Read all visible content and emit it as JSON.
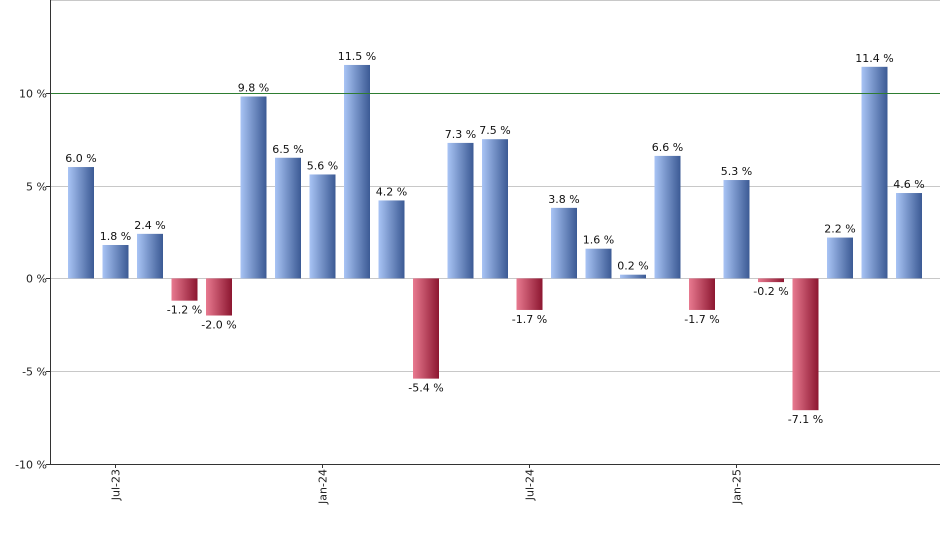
{
  "chart_data": {
    "type": "bar",
    "title": "",
    "xlabel": "",
    "ylabel": "",
    "ylim": [
      -10,
      15
    ],
    "y_ticks": [
      -10,
      -5,
      0,
      5,
      10
    ],
    "y_tick_labels": [
      "-10 %",
      "-5 %",
      "0 %",
      "5 %",
      "10 %"
    ],
    "grid": true,
    "reference_line": {
      "value": 10,
      "color": "#2e7d32"
    },
    "x_tick_labels": [
      {
        "label": "Jul-23",
        "at_index": 1
      },
      {
        "label": "Jan-24",
        "at_index": 7
      },
      {
        "label": "Jul-24",
        "at_index": 13
      },
      {
        "label": "Jan-25",
        "at_index": 19
      }
    ],
    "values": [
      6.0,
      1.8,
      2.4,
      -1.2,
      -2.0,
      9.8,
      6.5,
      5.6,
      11.5,
      4.2,
      -5.4,
      7.3,
      7.5,
      -1.7,
      3.8,
      1.6,
      0.2,
      6.6,
      -1.7,
      5.3,
      -0.2,
      -7.1,
      2.2,
      11.4,
      4.6
    ],
    "labels": [
      "6.0 %",
      "1.8 %",
      "2.4 %",
      "-1.2 %",
      "-2.0 %",
      "9.8 %",
      "6.5 %",
      "5.6 %",
      "11.5 %",
      "4.2 %",
      "-5.4 %",
      "7.3 %",
      "7.5 %",
      "-1.7 %",
      "3.8 %",
      "1.6 %",
      "0.2 %",
      "6.6 %",
      "-1.7 %",
      "5.3 %",
      "-0.2 %",
      "-7.1 %",
      "2.2 %",
      "11.4 %",
      "4.6 %"
    ],
    "colors": {
      "positive_light": "#a9c4f5",
      "positive_dark": "#3b5a94",
      "negative_light": "#e87a90",
      "negative_dark": "#8c1630",
      "grid": "#c8c8c8",
      "axis": "#333333"
    }
  }
}
